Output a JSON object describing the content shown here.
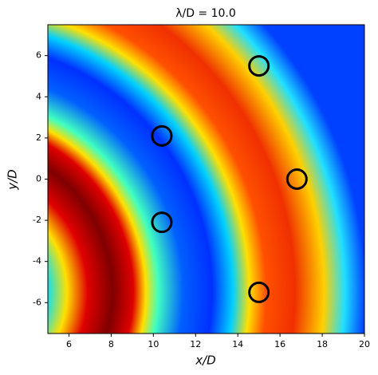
{
  "chart_data": {
    "type": "scatter",
    "title": "λ/D = 10.0",
    "xlabel": "x/D",
    "ylabel": "y/D",
    "x": [
      15.0,
      10.4,
      16.8,
      10.4,
      15.0
    ],
    "y": [
      5.5,
      2.1,
      0.0,
      -2.1,
      -5.5
    ],
    "color": "#000000",
    "xlim": [
      5,
      20
    ],
    "ylim": [
      -7.5,
      7.5
    ],
    "xticks": [
      6,
      8,
      10,
      12,
      14,
      16,
      18,
      20
    ],
    "yticks": [
      -6,
      -4,
      -2,
      0,
      2,
      4,
      6
    ]
  }
}
